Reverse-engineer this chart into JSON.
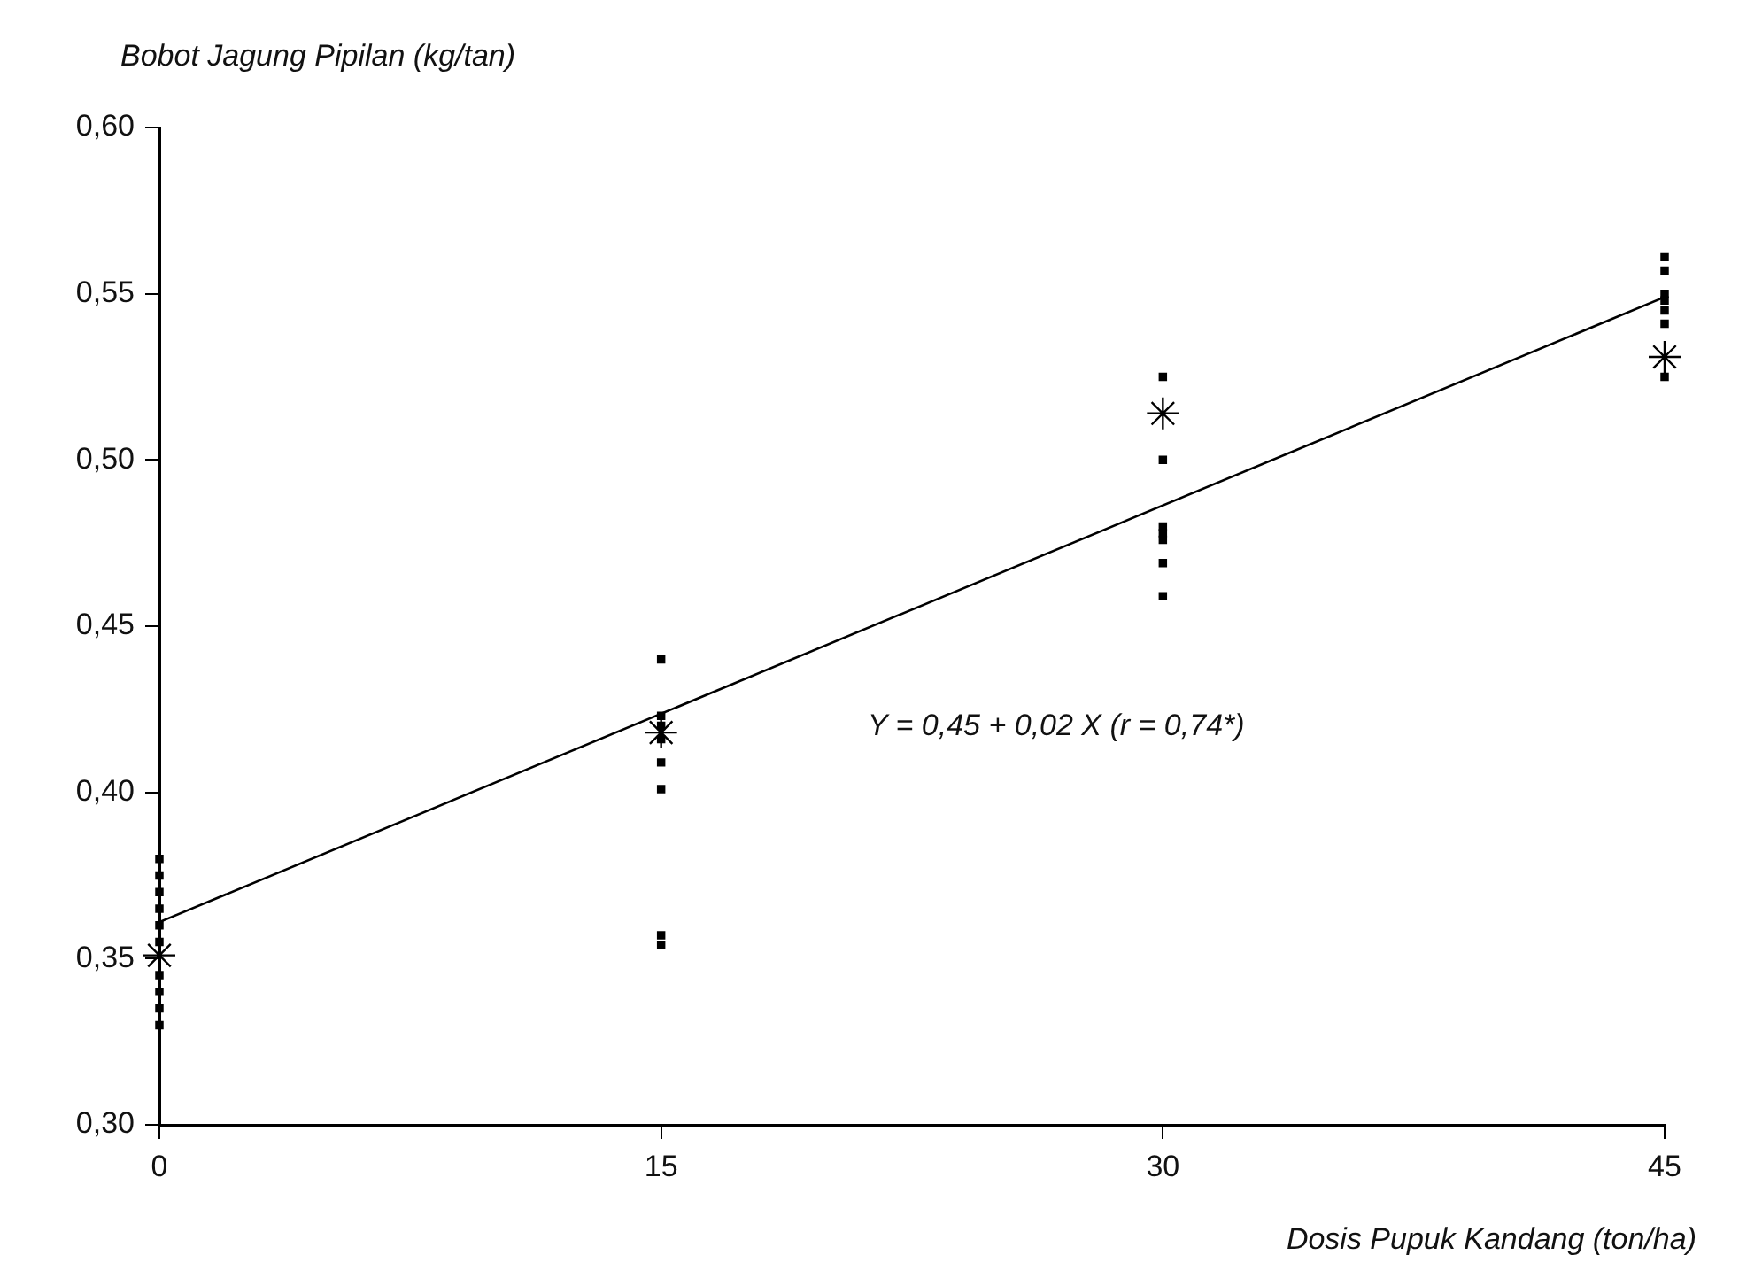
{
  "chart_data": {
    "type": "scatter",
    "xlabel": "Dosis Pupuk Kandang (ton/ha)",
    "ylabel": "Bobot Jagung Pipilan (kg/tan)",
    "xlim": [
      0,
      45
    ],
    "xticks": [
      0,
      15,
      30,
      45
    ],
    "ylim": [
      0.3,
      0.6
    ],
    "yticks": [
      {
        "value": 0.3,
        "label": "0,30"
      },
      {
        "value": 0.35,
        "label": "0,35"
      },
      {
        "value": 0.4,
        "label": "0,40"
      },
      {
        "value": 0.45,
        "label": "0,45"
      },
      {
        "value": 0.5,
        "label": "0,50"
      },
      {
        "value": 0.55,
        "label": "0,55"
      },
      {
        "value": 0.6,
        "label": "0,60"
      }
    ],
    "grid": false,
    "legend": false,
    "series": [
      {
        "marker": "square",
        "color": "#000000",
        "x": [
          0,
          0,
          0,
          0,
          0,
          0,
          0,
          0,
          0,
          0,
          15,
          15,
          15,
          15,
          15,
          15,
          15,
          15,
          30,
          30,
          30,
          30,
          30,
          30,
          30,
          45,
          45,
          45,
          45,
          45,
          45,
          45
        ],
        "values": [
          0.38,
          0.375,
          0.37,
          0.365,
          0.36,
          0.355,
          0.345,
          0.34,
          0.335,
          0.33,
          0.44,
          0.423,
          0.42,
          0.416,
          0.409,
          0.401,
          0.357,
          0.354,
          0.525,
          0.5,
          0.48,
          0.478,
          0.476,
          0.469,
          0.459,
          0.561,
          0.557,
          0.55,
          0.548,
          0.545,
          0.541,
          0.525
        ]
      },
      {
        "marker": "cross",
        "color": "#000000",
        "x": [
          0,
          15,
          30,
          45
        ],
        "values": [
          0.351,
          0.418,
          0.514,
          0.531
        ]
      },
      {
        "type": "line",
        "marker": "none",
        "color": "#000000",
        "x": [
          0,
          45
        ],
        "values": [
          0.361,
          0.549
        ]
      }
    ],
    "annotations": [
      "Y = 0,45 + 0,02 X (r = 0,74*)"
    ]
  }
}
